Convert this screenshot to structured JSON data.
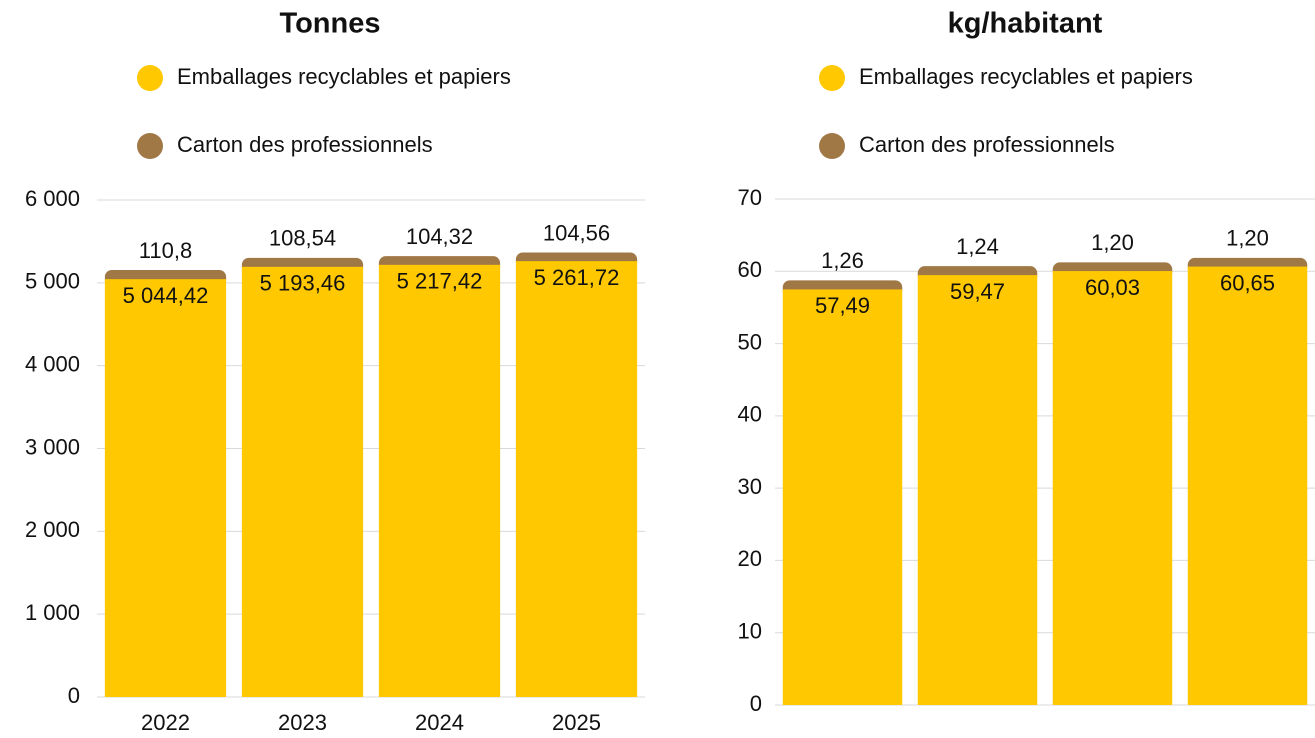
{
  "chart_data": [
    {
      "type": "stacked_bar",
      "title": "Tonnes",
      "categories": [
        "2022",
        "2023",
        "2024",
        "2025"
      ],
      "series": [
        {
          "name": "Emballages recyclables et papiers",
          "color": "#ffc800",
          "values": [
            5044.42,
            5193.46,
            5217.42,
            5261.72
          ],
          "value_labels": [
            "5 044,42",
            "5 193,46",
            "5 217,42",
            "5 261,72"
          ]
        },
        {
          "name": "Carton des professionnels",
          "color": "#a07846",
          "values": [
            110.8,
            108.54,
            104.32,
            104.56
          ],
          "value_labels": [
            "110,8",
            "108,54",
            "104,32",
            "104,56"
          ]
        }
      ],
      "ylim": [
        0,
        6000
      ],
      "yticks": [
        0,
        {
          "value": 1000,
          "label": "1 000"
        },
        {
          "value": 2000,
          "label": "2 000"
        },
        {
          "value": 3000,
          "label": "3 000"
        },
        {
          "value": 4000,
          "label": "4 000"
        },
        {
          "value": 5000,
          "label": "5 000"
        },
        {
          "value": 6000,
          "label": "6 000"
        }
      ],
      "grid": true
    },
    {
      "type": "stacked_bar",
      "title": "kg/habitant",
      "categories": [
        null,
        null,
        null,
        null
      ],
      "series": [
        {
          "name": "Emballages recyclables et papiers",
          "color": "#ffc800",
          "values": [
            57.49,
            59.47,
            60.03,
            60.65
          ],
          "value_labels": [
            "57,49",
            "59,47",
            "60,03",
            "60,65"
          ]
        },
        {
          "name": "Carton des professionnels",
          "color": "#a07846",
          "values": [
            1.26,
            1.24,
            1.2,
            1.2
          ],
          "value_labels": [
            "1,26",
            "1,24",
            "1,20",
            "1,20"
          ]
        }
      ],
      "ylim": [
        0,
        70
      ],
      "yticks": [
        0,
        10,
        20,
        30,
        40,
        50,
        60,
        70
      ],
      "grid": true
    }
  ]
}
